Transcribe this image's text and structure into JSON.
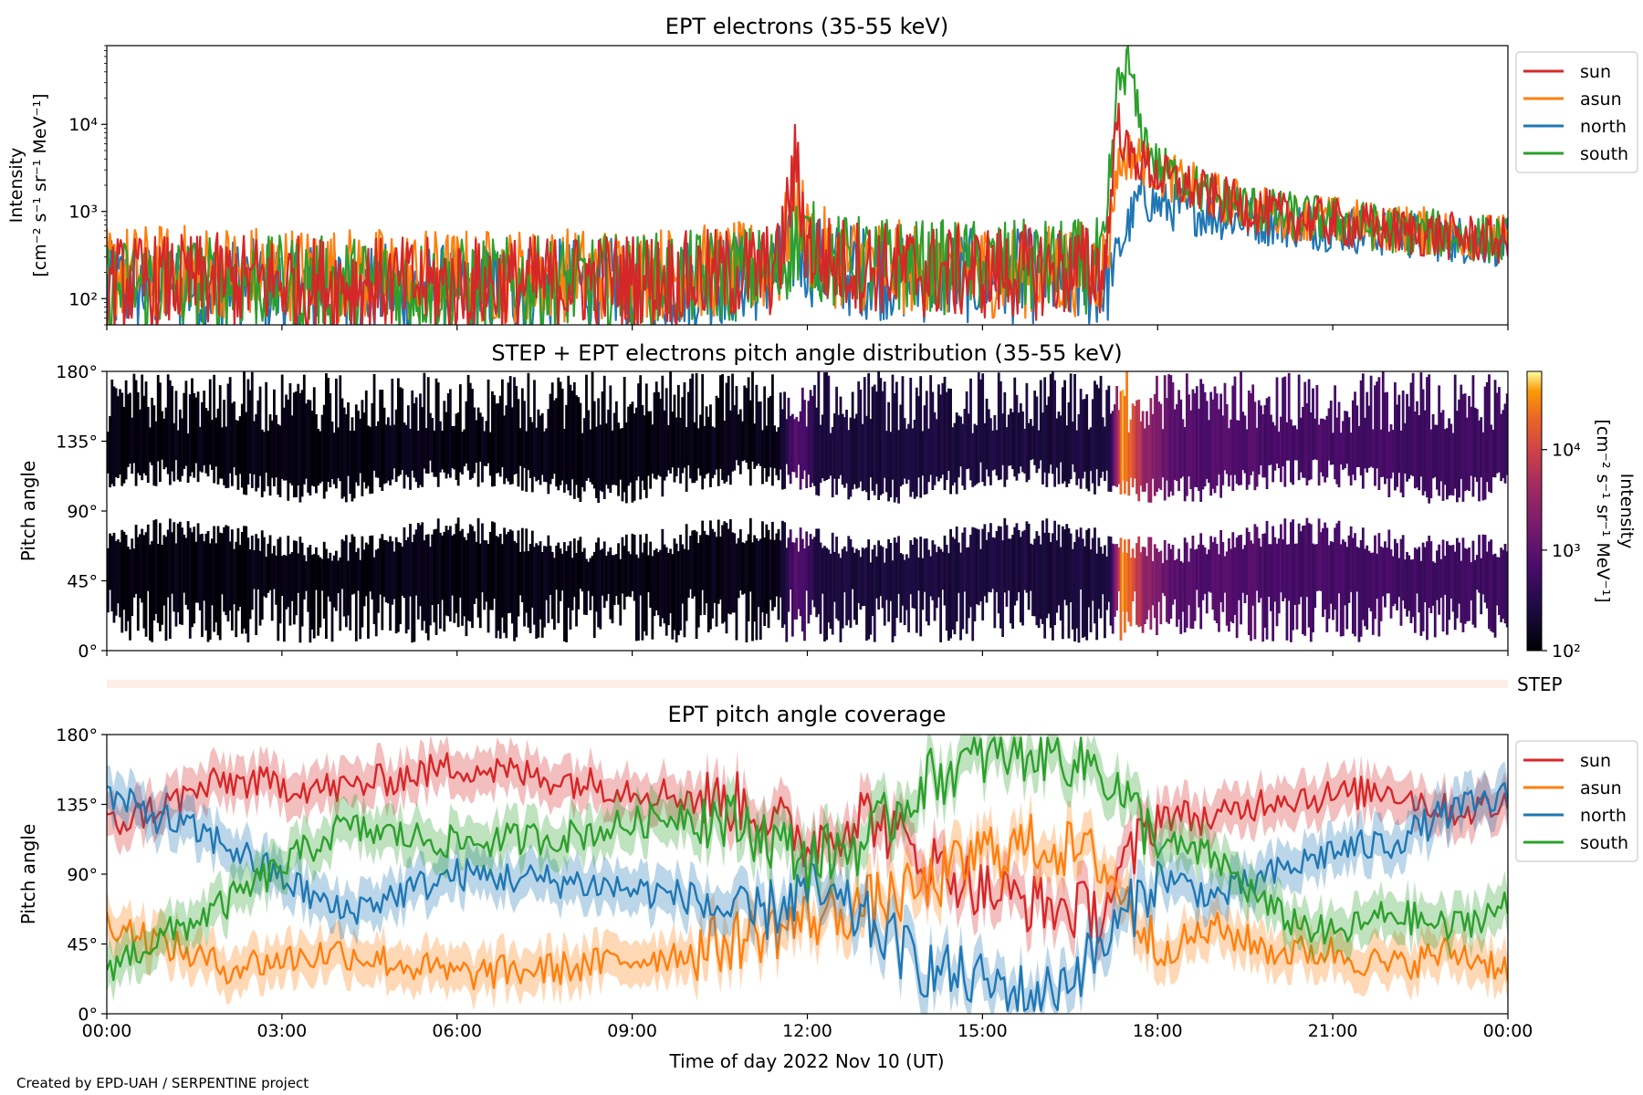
{
  "figure": {
    "credit": "Created by EPD-UAH / SERPENTINE project",
    "xlabel": "Time of day 2022 Nov 10 (UT)",
    "xticks": [
      "00:00",
      "03:00",
      "06:00",
      "09:00",
      "12:00",
      "15:00",
      "18:00",
      "21:00",
      "00:00"
    ],
    "xlim_hours": [
      0,
      24
    ]
  },
  "chart_data": [
    {
      "type": "line",
      "title": "EPT electrons (35-55 keV)",
      "ylabel_1": "Intensity",
      "ylabel_2": "[cm⁻² s⁻¹ sr⁻¹ MeV⁻¹]",
      "yscale": "log",
      "ylim": [
        50,
        80000
      ],
      "yticks": [
        100,
        1000,
        10000
      ],
      "ytick_labels": [
        "10²",
        "10³",
        "10⁴"
      ],
      "legend_position": "outside-right-top",
      "x_hours": [
        0,
        2,
        4,
        6,
        8,
        10,
        11.5,
        11.8,
        12.0,
        12.4,
        14,
        16,
        17.1,
        17.3,
        17.5,
        17.7,
        18.0,
        19.0,
        20.0,
        21.0,
        22.0,
        23.0,
        24.0
      ],
      "series": [
        {
          "name": "sun",
          "color": "#d62728",
          "values": [
            150,
            160,
            150,
            140,
            160,
            170,
            220,
            3500,
            400,
            260,
            200,
            200,
            220,
            12000,
            4200,
            3800,
            2600,
            1400,
            900,
            750,
            600,
            520,
            450
          ]
        },
        {
          "name": "asun",
          "color": "#ff7f0e",
          "values": [
            200,
            210,
            190,
            180,
            190,
            200,
            230,
            1500,
            450,
            280,
            210,
            210,
            230,
            3000,
            4500,
            4000,
            2800,
            1500,
            950,
            800,
            650,
            560,
            480
          ]
        },
        {
          "name": "north",
          "color": "#1f77b4",
          "values": [
            130,
            140,
            130,
            120,
            140,
            150,
            200,
            400,
            300,
            220,
            180,
            180,
            150,
            300,
            700,
            1500,
            1200,
            900,
            750,
            650,
            560,
            490,
            430
          ]
        },
        {
          "name": "south",
          "color": "#2ca02c",
          "values": [
            140,
            150,
            150,
            140,
            150,
            170,
            210,
            500,
            420,
            270,
            230,
            230,
            240,
            25000,
            50000,
            9000,
            3200,
            1400,
            950,
            780,
            620,
            540,
            460
          ]
        }
      ]
    },
    {
      "type": "heatmap",
      "title": "STEP + EPT electrons pitch angle distribution (35-55 keV)",
      "ylabel": "Pitch angle",
      "yticks": [
        "0°",
        "45°",
        "90°",
        "135°",
        "180°"
      ],
      "ylim": [
        0,
        180
      ],
      "colorbar": {
        "label_1": "Intensity",
        "label_2": "[cm⁻² s⁻¹ sr⁻¹ MeV⁻¹]",
        "scale": "log",
        "range": [
          100,
          60000
        ],
        "tick_labels": [
          "10²",
          "10³",
          "10⁴"
        ],
        "colormap": "inferno"
      },
      "intensity_profile": {
        "x_hours": [
          0,
          11.5,
          11.8,
          12.2,
          17.2,
          17.4,
          17.8,
          18.3,
          24
        ],
        "values": [
          120,
          130,
          900,
          250,
          260,
          40000,
          3000,
          800,
          500
        ]
      }
    },
    {
      "type": "bar",
      "label": "STEP",
      "color": "#fdefe6"
    },
    {
      "type": "line",
      "title": "EPT pitch angle coverage",
      "ylabel": "Pitch angle",
      "yticks": [
        "0°",
        "45°",
        "90°",
        "135°",
        "180°"
      ],
      "ylim": [
        0,
        180
      ],
      "legend_position": "outside-right-top",
      "x_hours": [
        0,
        2,
        4,
        6,
        8,
        10,
        11,
        12,
        13,
        14,
        15,
        16,
        17,
        18,
        19,
        20,
        21,
        22,
        23,
        24
      ],
      "series": [
        {
          "name": "sun",
          "color": "#d62728",
          "values": [
            120,
            150,
            145,
            160,
            150,
            140,
            135,
            110,
            130,
            100,
            80,
            70,
            65,
            130,
            125,
            140,
            140,
            145,
            130,
            135
          ]
        },
        {
          "name": "asun",
          "color": "#ff7f0e",
          "values": [
            60,
            30,
            40,
            25,
            30,
            40,
            50,
            60,
            70,
            80,
            105,
            110,
            100,
            40,
            55,
            40,
            40,
            30,
            40,
            30
          ]
        },
        {
          "name": "north",
          "color": "#1f77b4",
          "values": [
            140,
            110,
            65,
            90,
            85,
            75,
            60,
            80,
            60,
            30,
            20,
            10,
            40,
            90,
            75,
            90,
            105,
            110,
            130,
            140
          ]
        },
        {
          "name": "south",
          "color": "#2ca02c",
          "values": [
            30,
            70,
            120,
            110,
            115,
            130,
            120,
            100,
            110,
            150,
            165,
            170,
            160,
            110,
            100,
            65,
            50,
            65,
            55,
            70
          ]
        }
      ]
    }
  ]
}
